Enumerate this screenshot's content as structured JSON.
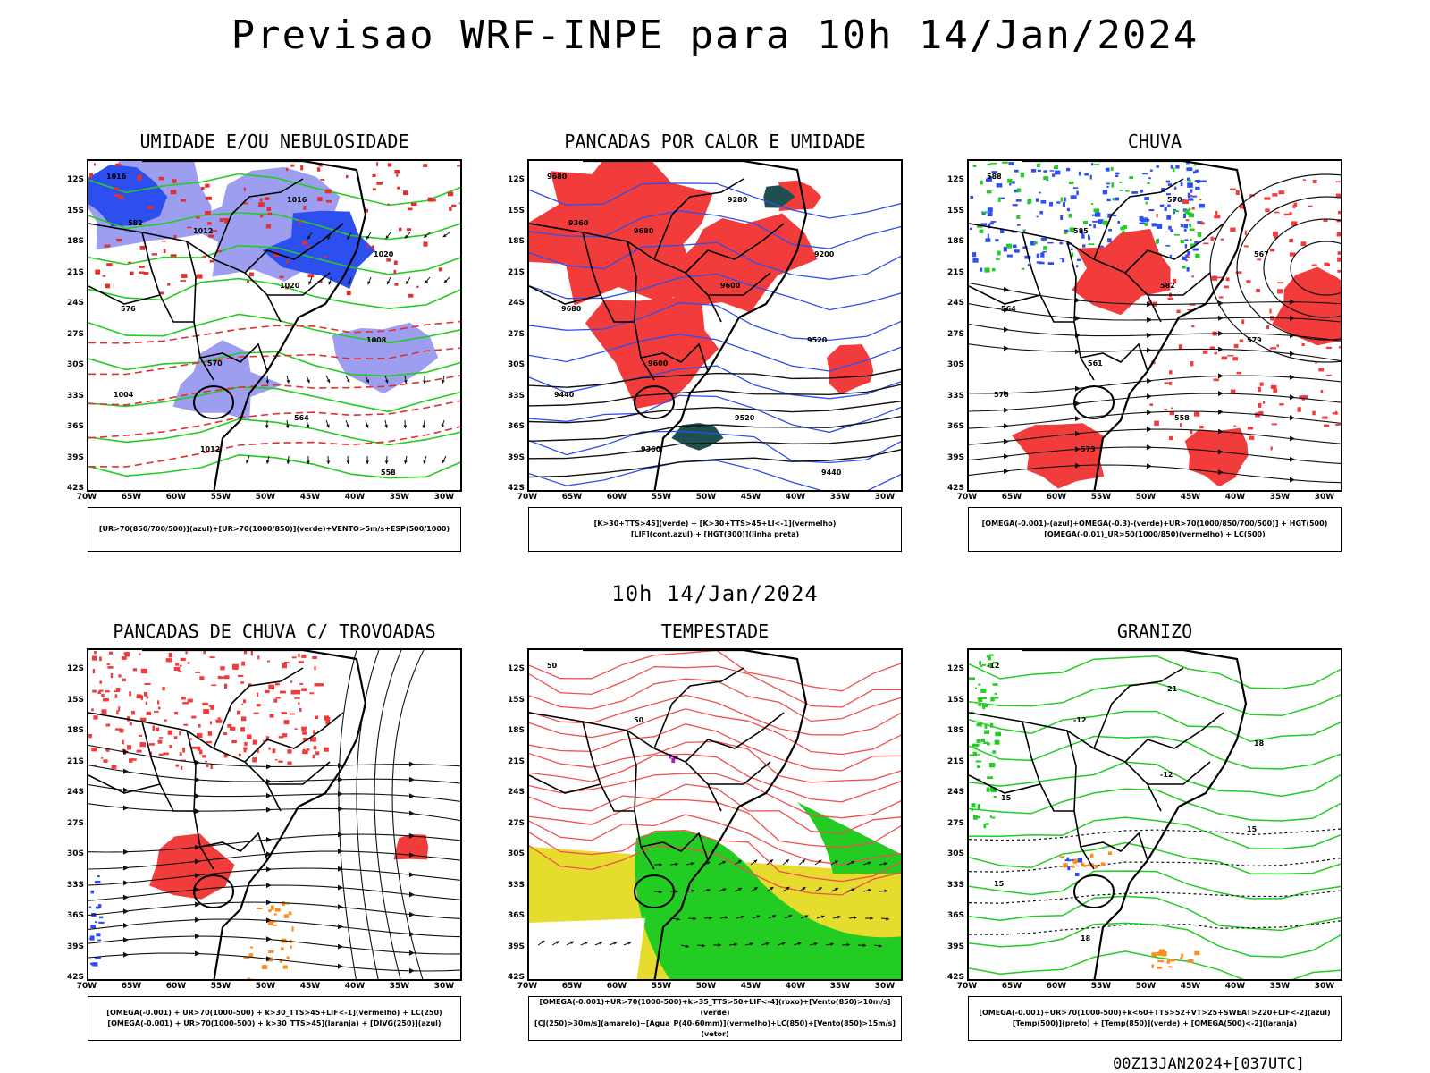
{
  "main_title": "Previsao WRF-INPE  para 10h 14/Jan/2024",
  "mid_title": "10h 14/Jan/2024",
  "footer": "00Z13JAN2024+[037UTC]",
  "lat_labels": [
    "12S",
    "15S",
    "18S",
    "21S",
    "24S",
    "27S",
    "30S",
    "33S",
    "36S",
    "39S",
    "42S"
  ],
  "lon_labels": [
    "70W",
    "65W",
    "60W",
    "55W",
    "50W",
    "45W",
    "40W",
    "35W",
    "30W"
  ],
  "colors": {
    "red": "#f23c3c",
    "green": "#22cc22",
    "blue": "#2d4ff0",
    "lavender": "#9e9ef0",
    "yellow": "#e6dc2e",
    "teal": "#1e5050",
    "orange": "#ff8c1e",
    "purple": "#a020c0"
  },
  "panels": [
    {
      "id": "umidade",
      "title": "UMIDADE E/OU NEBULOSIDADE",
      "legend": [
        "[UR>70(850/700/500)](azul)+[UR>70(1000/850)](verde)+VENTO>5m/s+ESP(500/1000)"
      ],
      "contour_labels": [
        "1016",
        "1012",
        "1020",
        "1008",
        "1004",
        "1012",
        "1016",
        "1020",
        "576",
        "570",
        "564",
        "558",
        "582"
      ]
    },
    {
      "id": "pancadas-calor",
      "title": "PANCADAS POR CALOR E UMIDADE",
      "legend": [
        "[K>30+TTS>45](verde) + [K>30+TTS>45+LI<-1](vermelho)",
        "[LIF](cont.azul) + [HGT(300)](linha preta)"
      ],
      "contour_labels": [
        "9680",
        "9680",
        "9600",
        "9520",
        "9440",
        "9360",
        "9280",
        "9200",
        "9680",
        "9600",
        "9520",
        "9440",
        "9360"
      ]
    },
    {
      "id": "chuva",
      "title": "CHUVA",
      "legend": [
        "[OMEGA(-0.001)-(azul)+OMEGA(-0.3)-(verde)+UR>70(1000/850/700/500)] + HGT(500)",
        "[OMEGA(-0.01)_UR>50(1000/850)(vermelho) + LC(500)"
      ],
      "contour_labels": [
        "588",
        "585",
        "582",
        "579",
        "576",
        "573",
        "570",
        "567",
        "564",
        "561",
        "558"
      ]
    },
    {
      "id": "trovoadas",
      "title": "PANCADAS DE CHUVA C/ TROVOADAS",
      "legend": [
        "[OMEGA(-0.001) + UR>70(1000-500) + k>30_TTS>45+LIF<-1](vermelho) + LC(250)",
        "[OMEGA(-0.001) + UR>70(1000-500) + k>30_TTS>45](laranja) + [DIVG(250)](azul)"
      ],
      "contour_labels": []
    },
    {
      "id": "tempestade",
      "title": "TEMPESTADE",
      "legend": [
        "[OMEGA(-0.001)+UR>70(1000-500)+k>35_TTS>50+LIF<-4](roxo)+[Vento(850)>10m/s](verde)",
        "[CJ(250)>30m/s](amarelo)+[Agua_P(40-60mm)](vermelho)+LC(850)+[Vento(850)>15m/s](vetor)"
      ],
      "contour_labels": [
        "50",
        "50"
      ]
    },
    {
      "id": "granizo",
      "title": "GRANIZO",
      "legend": [
        "[OMEGA(-0.001)+UR>70(1000-500)+k<60+TTS>52+VT>25+SWEAT>220+LIF<-2](azul)",
        "[Temp(500)](preto) + [Temp(850)](verde) + [OMEGA(500)<-2](laranja)"
      ],
      "contour_labels": [
        "-12",
        "-12",
        "-12",
        "15",
        "15",
        "18",
        "21",
        "18",
        "15"
      ]
    }
  ]
}
